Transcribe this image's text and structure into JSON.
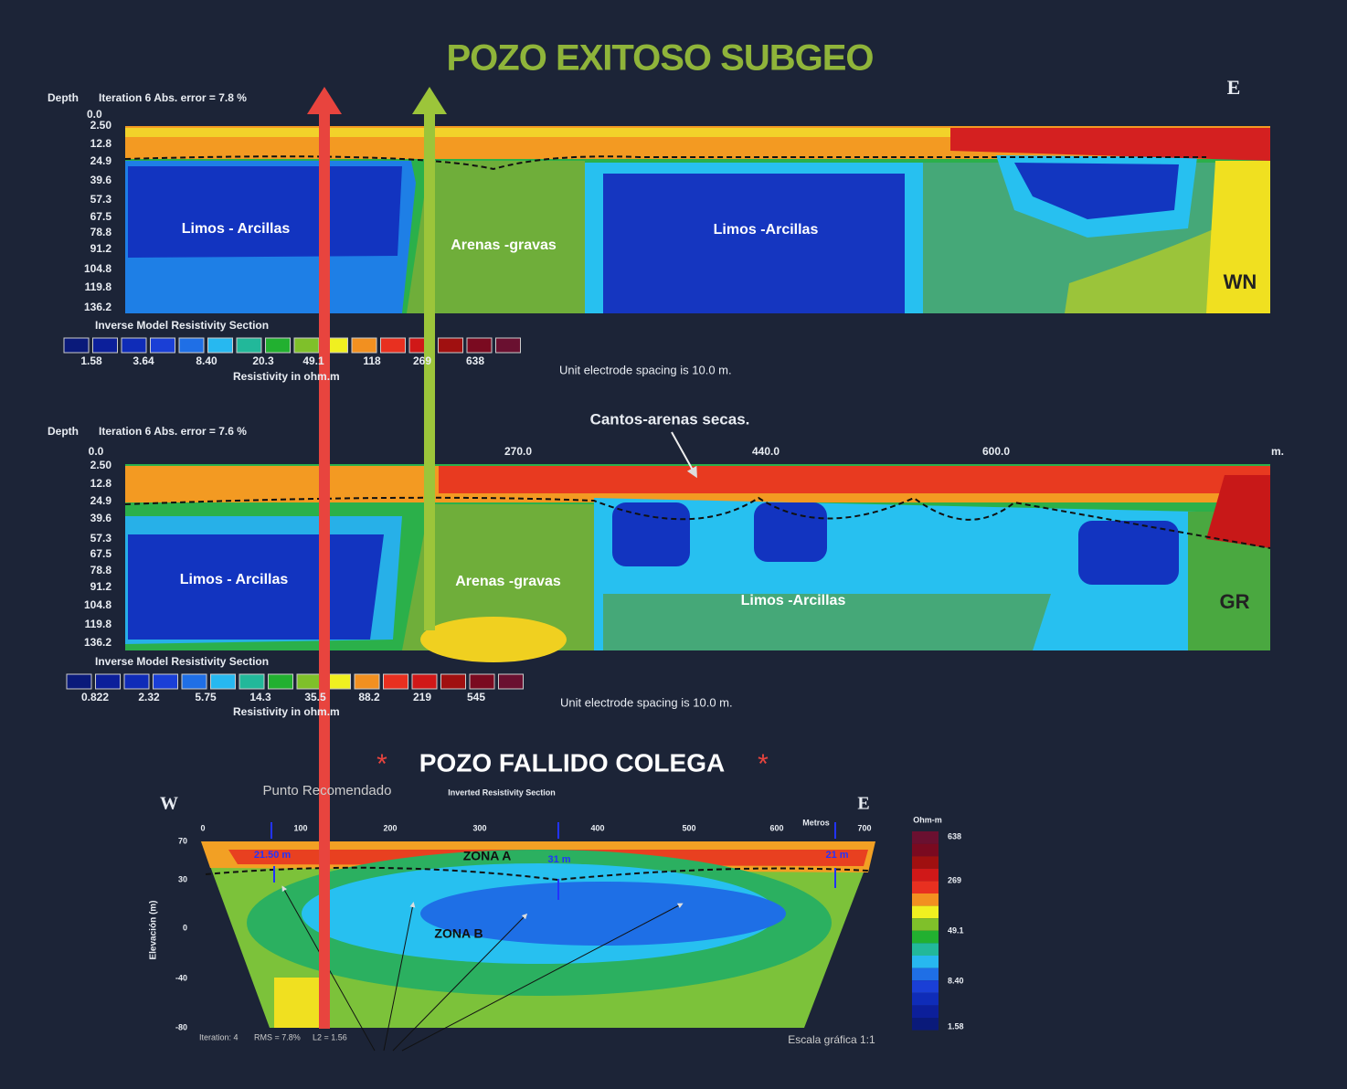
{
  "title": "POZO EXITOSO SUBGEO",
  "panel_wn": {
    "depth_label": "Depth",
    "iteration": "Iteration 6 Abs. error = 7.8 %",
    "x_start": "0.0",
    "compass": "E",
    "depths": [
      "2.50",
      "12.8",
      "24.9",
      "39.6",
      "57.3",
      "67.5",
      "78.8",
      "91.2",
      "104.8",
      "119.8",
      "136.2"
    ],
    "regions": [
      "Limos - Arcillas",
      "Arenas -gravas",
      "Limos -Arcillas"
    ],
    "tag": "WN",
    "legend_title": "Inverse Model Resistivity Section",
    "legend_values": [
      "1.58",
      "3.64",
      "8.40",
      "20.3",
      "49.1",
      "118",
      "269",
      "638"
    ],
    "legend_unit": "Resistivity in ohm.m",
    "spacing": "Unit electrode spacing is 10.0 m."
  },
  "panel_gr": {
    "depth_label": "Depth",
    "iteration": "Iteration 6 Abs. error = 7.6 %",
    "x_ticks": [
      "0.0",
      "270.0",
      "440.0",
      "600.0",
      "m."
    ],
    "annotation": "Cantos-arenas secas.",
    "depths": [
      "2.50",
      "12.8",
      "24.9",
      "39.6",
      "57.3",
      "67.5",
      "78.8",
      "91.2",
      "104.8",
      "119.8",
      "136.2"
    ],
    "regions": [
      "Limos - Arcillas",
      "Arenas -gravas",
      "Limos -Arcillas"
    ],
    "tag": "GR",
    "legend_title": "Inverse Model Resistivity Section",
    "legend_values": [
      "0.822",
      "2.32",
      "5.75",
      "14.3",
      "35.5",
      "88.2",
      "219",
      "545"
    ],
    "legend_unit": "Resistivity in ohm.m",
    "spacing": "Unit electrode spacing is 10.0 m."
  },
  "subtitle": "POZO FALLIDO COLEGA",
  "panel_colega": {
    "west": "W",
    "east": "E",
    "recommended": "Punto Recomendado",
    "section_title": "Inverted Resistivity Section",
    "x_ticks": [
      "0",
      "100",
      "200",
      "300",
      "400",
      "500",
      "600",
      "700"
    ],
    "x_unit": "Metros",
    "y_ticks": [
      "70",
      "30",
      "0",
      "-40",
      "-80"
    ],
    "y_label": "Elevación (m)",
    "depth_marks": [
      "21.50 m",
      "31 m",
      "21 m"
    ],
    "zones": [
      "ZONA A",
      "ZONA B"
    ],
    "footer": [
      "Iteration: 4",
      "RMS = 7.8%",
      "L2 = 1.56"
    ],
    "scale": "Escala gráfica 1:1",
    "colorbar_title": "Ohm-m",
    "colorbar_values": [
      "638",
      "269",
      "49.1",
      "8.40",
      "1.58"
    ]
  }
}
